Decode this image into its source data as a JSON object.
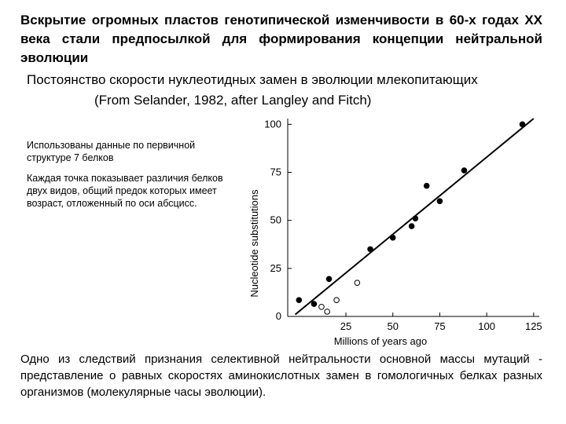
{
  "heading": "Вскрытие огромных пластов генотипической изменчивости в 60-х годах ХХ века стали предпосылкой для формирования концепции нейтральной эволюции",
  "figure": {
    "title": "Постоянство скорости нуклеотидных замен в эволюции млекопитающих",
    "source": "(From Selander, 1982, after Langley and Fitch)",
    "note_1": "Использованы данные по первичной структуре 7 белков",
    "note_2": "Каждая точка показывает различия белков двух видов, общий предок которых имеет возраст, отложенный по оси абсцисс."
  },
  "chart_data": {
    "type": "scatter",
    "xlabel": "Millions of years ago",
    "ylabel": "Nucleotide substitutions",
    "xlim": [
      -6,
      128
    ],
    "ylim": [
      0,
      103
    ],
    "xticks": [
      25,
      50,
      75,
      100,
      125
    ],
    "yticks": [
      0,
      25,
      50,
      75,
      100
    ],
    "grid": false,
    "legend": "none",
    "series": [
      {
        "marker": "filled",
        "points": [
          [
            0,
            8.5
          ],
          [
            8,
            6.5
          ],
          [
            16,
            19.5
          ],
          [
            38,
            35
          ],
          [
            50,
            41
          ],
          [
            60,
            47
          ],
          [
            62,
            51
          ],
          [
            68,
            68
          ],
          [
            75,
            60
          ],
          [
            88,
            76
          ],
          [
            119,
            100
          ]
        ]
      },
      {
        "marker": "open",
        "points": [
          [
            12,
            5
          ],
          [
            15,
            2.5
          ],
          [
            20,
            8.5
          ],
          [
            31,
            17.5
          ]
        ]
      }
    ],
    "trend_line": {
      "x": [
        -2,
        125
      ],
      "y": [
        1,
        103
      ]
    }
  },
  "footer": "Одно из следствий признания селективной нейтральности основной массы мутаций - представление о равных скоростях аминокислотных замен в гомологичных белках разных организмов (молекулярные часы эволюции)."
}
